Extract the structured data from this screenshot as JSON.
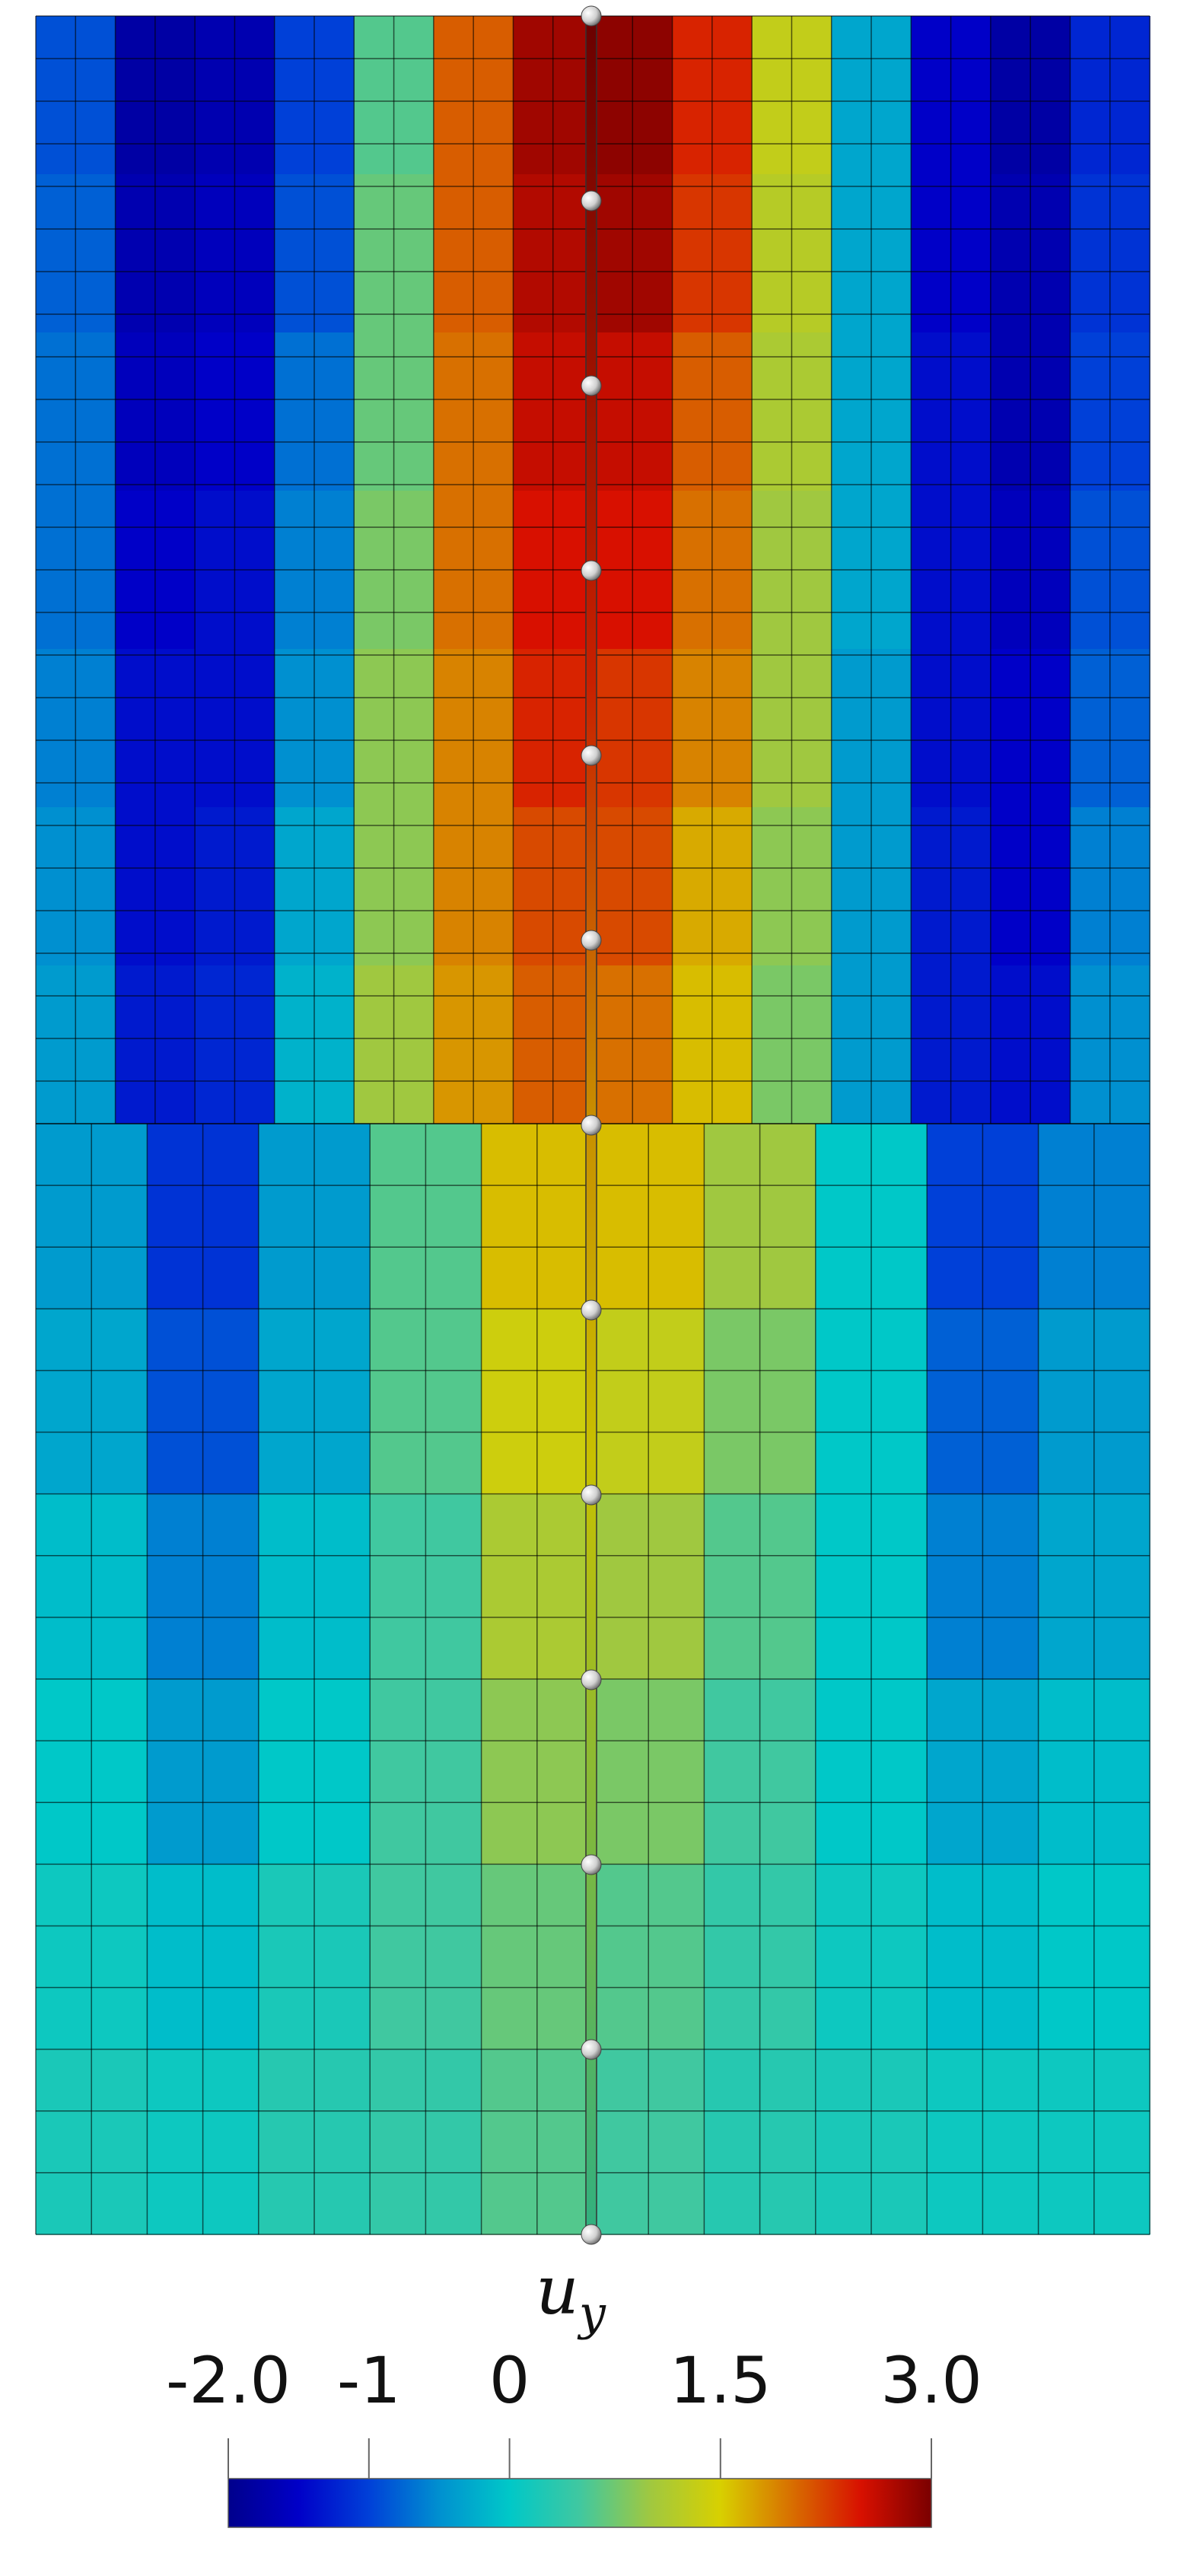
{
  "chart_data": {
    "type": "heatmap",
    "colorbar_title_symbol": "u",
    "colorbar_title_subscript": "y",
    "clim": [
      -2,
      3
    ],
    "ticks": [
      {
        "value": -2,
        "label": "-2.0"
      },
      -1,
      0,
      1.5,
      {
        "value": 3,
        "label": "3.0"
      }
    ],
    "colormap": [
      "#00008c",
      "#0000c8",
      "#0040d8",
      "#0090d0",
      "#00c8c8",
      "#40c8a0",
      "#a0c840",
      "#d8d000",
      "#d87000",
      "#d81000",
      "#7a0000"
    ],
    "top_values": [
      [
        -0.9,
        -1.8,
        -1.7,
        -1.0,
        0.6,
        2.1,
        2.8,
        2.9,
        2.4,
        1.3,
        -0.3,
        -1.5,
        -1.8,
        -1.2
      ],
      [
        -0.8,
        -1.7,
        -1.6,
        -0.9,
        0.7,
        2.1,
        2.7,
        2.8,
        2.3,
        1.2,
        -0.3,
        -1.5,
        -1.7,
        -1.1
      ],
      [
        -0.7,
        -1.6,
        -1.5,
        -0.7,
        0.7,
        2.0,
        2.6,
        2.6,
        2.1,
        1.1,
        -0.3,
        -1.4,
        -1.7,
        -1.0
      ],
      [
        -0.7,
        -1.5,
        -1.4,
        -0.6,
        0.8,
        2.0,
        2.5,
        2.5,
        2.0,
        1.0,
        -0.3,
        -1.4,
        -1.6,
        -0.9
      ],
      [
        -0.6,
        -1.4,
        -1.4,
        -0.5,
        0.9,
        1.9,
        2.4,
        2.3,
        1.9,
        1.0,
        -0.4,
        -1.4,
        -1.5,
        -0.8
      ],
      [
        -0.5,
        -1.4,
        -1.3,
        -0.3,
        0.9,
        1.9,
        2.2,
        2.2,
        1.7,
        0.9,
        -0.4,
        -1.3,
        -1.5,
        -0.6
      ],
      [
        -0.4,
        -1.3,
        -1.2,
        -0.2,
        1.0,
        1.8,
        2.1,
        2.0,
        1.6,
        0.8,
        -0.4,
        -1.3,
        -1.4,
        -0.5
      ]
    ],
    "bottom_values": [
      [
        -0.4,
        -1.1,
        -0.4,
        0.6,
        1.6,
        1.6,
        1.0,
        0.0,
        -1.0,
        -0.6
      ],
      [
        -0.3,
        -0.9,
        -0.3,
        0.6,
        1.4,
        1.3,
        0.8,
        0.0,
        -0.8,
        -0.4
      ],
      [
        -0.1,
        -0.6,
        -0.1,
        0.5,
        1.1,
        1.0,
        0.6,
        0.0,
        -0.6,
        -0.3
      ],
      [
        0.0,
        -0.4,
        0.0,
        0.5,
        0.9,
        0.8,
        0.5,
        0.0,
        -0.3,
        -0.1
      ],
      [
        0.1,
        -0.1,
        0.2,
        0.5,
        0.7,
        0.6,
        0.4,
        0.1,
        -0.1,
        0.0
      ],
      [
        0.2,
        0.1,
        0.3,
        0.4,
        0.6,
        0.5,
        0.3,
        0.2,
        0.1,
        0.1
      ]
    ]
  }
}
